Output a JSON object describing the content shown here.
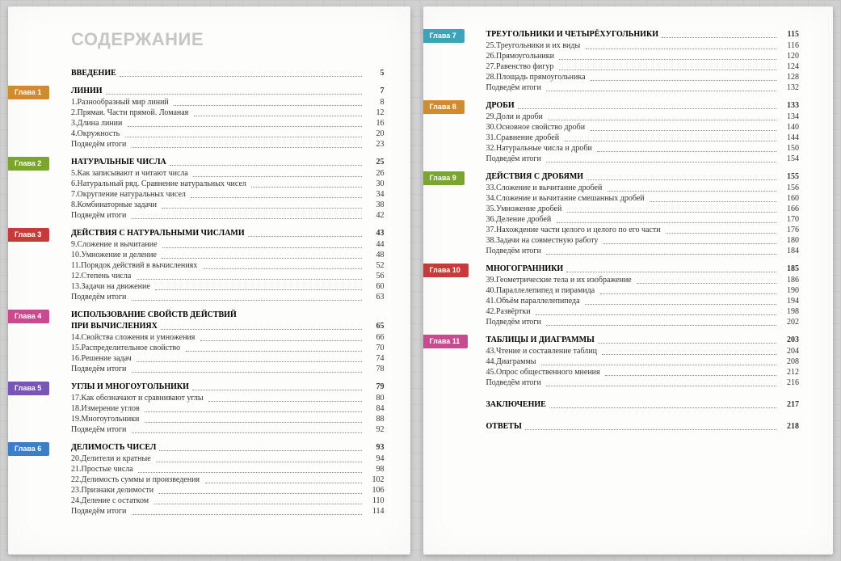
{
  "title": "СОДЕРЖАНИЕ",
  "intro": {
    "label": "ВВЕДЕНИЕ",
    "page": 5
  },
  "conclusion": {
    "label": "ЗАКЛЮЧЕНИЕ",
    "page": 217
  },
  "answers": {
    "label": "ОТВЕТЫ",
    "page": 218
  },
  "summary_label": "Подведём итоги",
  "tab_prefix": "Глава",
  "chapters": [
    {
      "n": 1,
      "color": "#d18b2f",
      "title": "ЛИНИИ",
      "page": 7,
      "summary_page": 23,
      "column": "left",
      "items": [
        {
          "n": 1,
          "t": "Разнообразный мир линий",
          "p": 8
        },
        {
          "n": 2,
          "t": "Прямая. Части прямой. Ломаная",
          "p": 12
        },
        {
          "n": 3,
          "t": "Длина линии",
          "p": 16
        },
        {
          "n": 4,
          "t": "Окружность",
          "p": 20
        }
      ]
    },
    {
      "n": 2,
      "color": "#7aa52e",
      "title": "НАТУРАЛЬНЫЕ ЧИСЛА",
      "page": 25,
      "summary_page": 42,
      "column": "left",
      "items": [
        {
          "n": 5,
          "t": "Как записывают и читают числа",
          "p": 26
        },
        {
          "n": 6,
          "t": "Натуральный ряд. Сравнение натуральных чисел",
          "p": 30
        },
        {
          "n": 7,
          "t": "Округление натуральных чисел",
          "p": 34
        },
        {
          "n": 8,
          "t": "Комбинаторные задачи",
          "p": 38
        }
      ]
    },
    {
      "n": 3,
      "color": "#c73a3a",
      "title": "ДЕЙСТВИЯ С НАТУРАЛЬНЫМИ ЧИСЛАМИ",
      "page": 43,
      "summary_page": 63,
      "column": "left",
      "items": [
        {
          "n": 9,
          "t": "Сложение и вычитание",
          "p": 44
        },
        {
          "n": 10,
          "t": "Умножение и деление",
          "p": 48
        },
        {
          "n": 11,
          "t": "Порядок действий в вычислениях",
          "p": 52
        },
        {
          "n": 12,
          "t": "Степень числа",
          "p": 56
        },
        {
          "n": 13,
          "t": "Задачи на движение",
          "p": 60
        }
      ]
    },
    {
      "n": 4,
      "color": "#c94a8f",
      "title": "ИСПОЛЬЗОВАНИЕ СВОЙСТВ ДЕЙСТВИЙ\nПРИ ВЫЧИСЛЕНИЯХ",
      "page": 65,
      "summary_page": 78,
      "column": "left",
      "items": [
        {
          "n": 14,
          "t": "Свойства сложения и умножения",
          "p": 66
        },
        {
          "n": 15,
          "t": "Распределительное свойство",
          "p": 70
        },
        {
          "n": 16,
          "t": "Решение задач",
          "p": 74
        }
      ]
    },
    {
      "n": 5,
      "color": "#7a55b8",
      "title": "УГЛЫ И МНОГОУГОЛЬНИКИ",
      "page": 79,
      "summary_page": 92,
      "column": "left",
      "items": [
        {
          "n": 17,
          "t": "Как обозначают и сравнивают углы",
          "p": 80
        },
        {
          "n": 18,
          "t": "Измерение углов",
          "p": 84
        },
        {
          "n": 19,
          "t": "Многоугольники",
          "p": 88
        }
      ]
    },
    {
      "n": 6,
      "color": "#3a7fc7",
      "title": "ДЕЛИМОСТЬ ЧИСЕЛ",
      "page": 93,
      "summary_page": 114,
      "column": "left",
      "items": [
        {
          "n": 20,
          "t": "Делители и кратные",
          "p": 94
        },
        {
          "n": 21,
          "t": "Простые числа",
          "p": 98
        },
        {
          "n": 22,
          "t": "Делимость суммы и произведения",
          "p": 102
        },
        {
          "n": 23,
          "t": "Признаки делимости",
          "p": 106
        },
        {
          "n": 24,
          "t": "Деление с остатком",
          "p": 110
        }
      ]
    },
    {
      "n": 7,
      "color": "#3aa5b8",
      "title": "ТРЕУГОЛЬНИКИ И ЧЕТЫРЁХУГОЛЬНИКИ",
      "page": 115,
      "summary_page": 132,
      "column": "right",
      "items": [
        {
          "n": 25,
          "t": "Треугольники и их виды",
          "p": 116
        },
        {
          "n": 26,
          "t": "Прямоугольники",
          "p": 120
        },
        {
          "n": 27,
          "t": "Равенство фигур",
          "p": 124
        },
        {
          "n": 28,
          "t": "Площадь прямоугольника",
          "p": 128
        }
      ]
    },
    {
      "n": 8,
      "color": "#d18b2f",
      "title": "ДРОБИ",
      "page": 133,
      "summary_page": 154,
      "column": "right",
      "items": [
        {
          "n": 29,
          "t": "Доли и дроби",
          "p": 134
        },
        {
          "n": 30,
          "t": "Основное свойство дроби",
          "p": 140
        },
        {
          "n": 31,
          "t": "Сравнение дробей",
          "p": 144
        },
        {
          "n": 32,
          "t": "Натуральные числа и дроби",
          "p": 150
        }
      ]
    },
    {
      "n": 9,
      "color": "#7aa52e",
      "title": "ДЕЙСТВИЯ С ДРОБЯМИ",
      "page": 155,
      "summary_page": 184,
      "column": "right",
      "items": [
        {
          "n": 33,
          "t": "Сложение и вычитание дробей",
          "p": 156
        },
        {
          "n": 34,
          "t": "Сложение и вычитание смешанных дробей",
          "p": 160
        },
        {
          "n": 35,
          "t": "Умножение дробей",
          "p": 166
        },
        {
          "n": 36,
          "t": "Деление дробей",
          "p": 170
        },
        {
          "n": 37,
          "t": "Нахождение части целого и целого по его части",
          "p": 176
        },
        {
          "n": 38,
          "t": "Задачи на совместную работу",
          "p": 180
        }
      ]
    },
    {
      "n": 10,
      "color": "#c73a3a",
      "title": "МНОГОГРАННИКИ",
      "page": 185,
      "summary_page": 202,
      "column": "right",
      "items": [
        {
          "n": 39,
          "t": "Геометрические тела и их изображение",
          "p": 186
        },
        {
          "n": 40,
          "t": "Параллелепипед и пирамида",
          "p": 190
        },
        {
          "n": 41,
          "t": "Объём параллелепипеда",
          "p": 194
        },
        {
          "n": 42,
          "t": "Развёртки",
          "p": 198
        }
      ]
    },
    {
      "n": 11,
      "color": "#c94a8f",
      "title": "ТАБЛИЦЫ И ДИАГРАММЫ",
      "page": 203,
      "summary_page": 216,
      "column": "right",
      "items": [
        {
          "n": 43,
          "t": "Чтение и составление таблиц",
          "p": 204
        },
        {
          "n": 44,
          "t": "Диаграммы",
          "p": 208
        },
        {
          "n": 45,
          "t": "Опрос общественного мнения",
          "p": 212
        }
      ]
    }
  ]
}
